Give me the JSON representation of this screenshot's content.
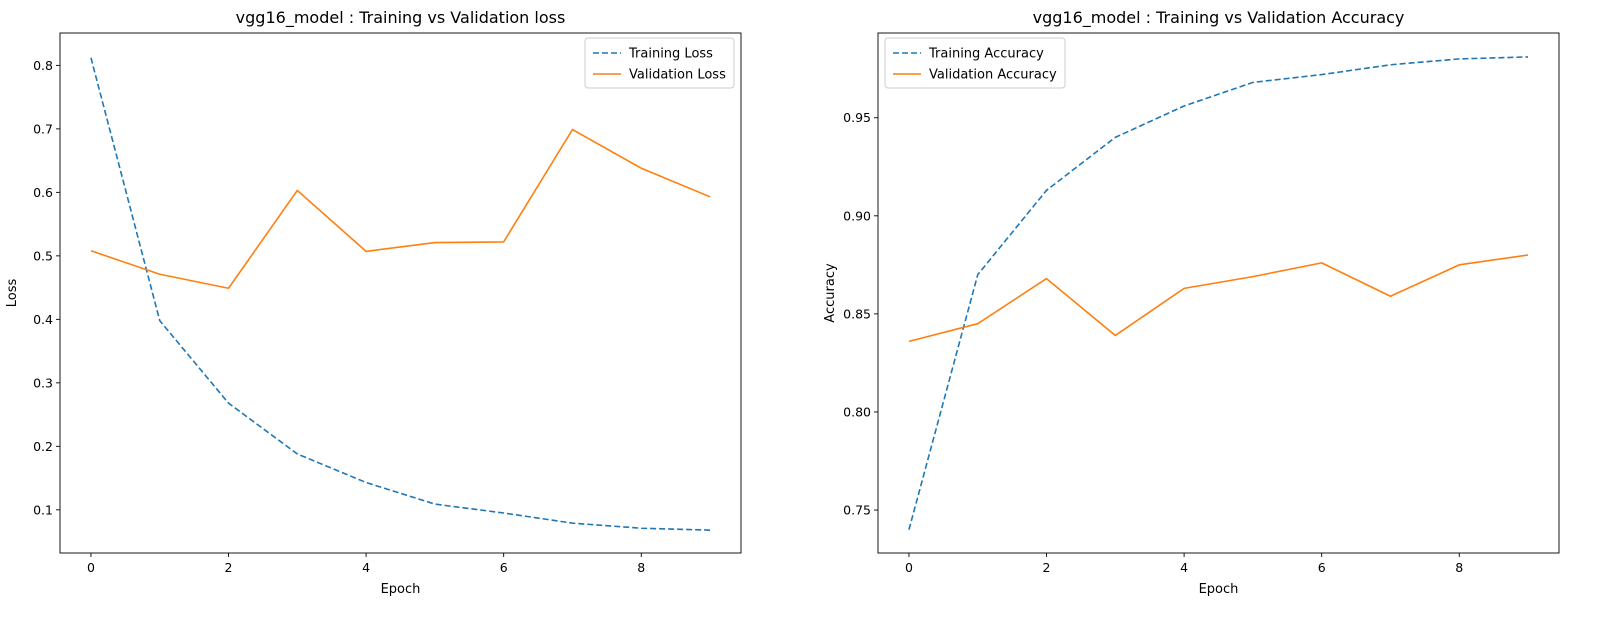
{
  "chart_data": [
    {
      "type": "line",
      "title": "vgg16_model : Training vs Validation loss",
      "xlabel": "Epoch",
      "ylabel": "Loss",
      "x": [
        0,
        1,
        2,
        3,
        4,
        5,
        6,
        7,
        8,
        9
      ],
      "xlim": [
        -0.45,
        9.45
      ],
      "ylim": [
        0.032,
        0.851
      ],
      "xticks": [
        0,
        2,
        4,
        6,
        8
      ],
      "yticks": [
        0.1,
        0.2,
        0.3,
        0.4,
        0.5,
        0.6,
        0.7,
        0.8
      ],
      "xtick_labels": [
        "0",
        "2",
        "4",
        "6",
        "8"
      ],
      "ytick_labels": [
        "0.1",
        "0.2",
        "0.3",
        "0.4",
        "0.5",
        "0.6",
        "0.7",
        "0.8"
      ],
      "legend_placement": "upper-right",
      "grid": false,
      "series": [
        {
          "name": "Training Loss",
          "color": "#1f77b4",
          "dash": true,
          "values": [
            0.812,
            0.398,
            0.268,
            0.188,
            0.143,
            0.109,
            0.095,
            0.079,
            0.071,
            0.068
          ]
        },
        {
          "name": "Validation Loss",
          "color": "#ff7f0e",
          "dash": false,
          "values": [
            0.508,
            0.471,
            0.449,
            0.603,
            0.507,
            0.521,
            0.522,
            0.699,
            0.638,
            0.593
          ]
        }
      ]
    },
    {
      "type": "line",
      "title": "vgg16_model : Training vs Validation Accuracy",
      "xlabel": "Epoch",
      "ylabel": "Accuracy",
      "x": [
        0,
        1,
        2,
        3,
        4,
        5,
        6,
        7,
        8,
        9
      ],
      "xlim": [
        -0.45,
        9.45
      ],
      "ylim": [
        0.7281,
        0.9932
      ],
      "xticks": [
        0,
        2,
        4,
        6,
        8
      ],
      "yticks": [
        0.75,
        0.8,
        0.85,
        0.9,
        0.95
      ],
      "xtick_labels": [
        "0",
        "2",
        "4",
        "6",
        "8"
      ],
      "ytick_labels": [
        "0.75",
        "0.80",
        "0.85",
        "0.90",
        "0.95"
      ],
      "legend_placement": "upper-left",
      "grid": false,
      "series": [
        {
          "name": "Training Accuracy",
          "color": "#1f77b4",
          "dash": true,
          "values": [
            0.74,
            0.87,
            0.913,
            0.94,
            0.956,
            0.968,
            0.972,
            0.977,
            0.98,
            0.981
          ]
        },
        {
          "name": "Validation Accuracy",
          "color": "#ff7f0e",
          "dash": false,
          "values": [
            0.836,
            0.845,
            0.868,
            0.839,
            0.863,
            0.869,
            0.876,
            0.859,
            0.875,
            0.88
          ]
        }
      ]
    }
  ]
}
